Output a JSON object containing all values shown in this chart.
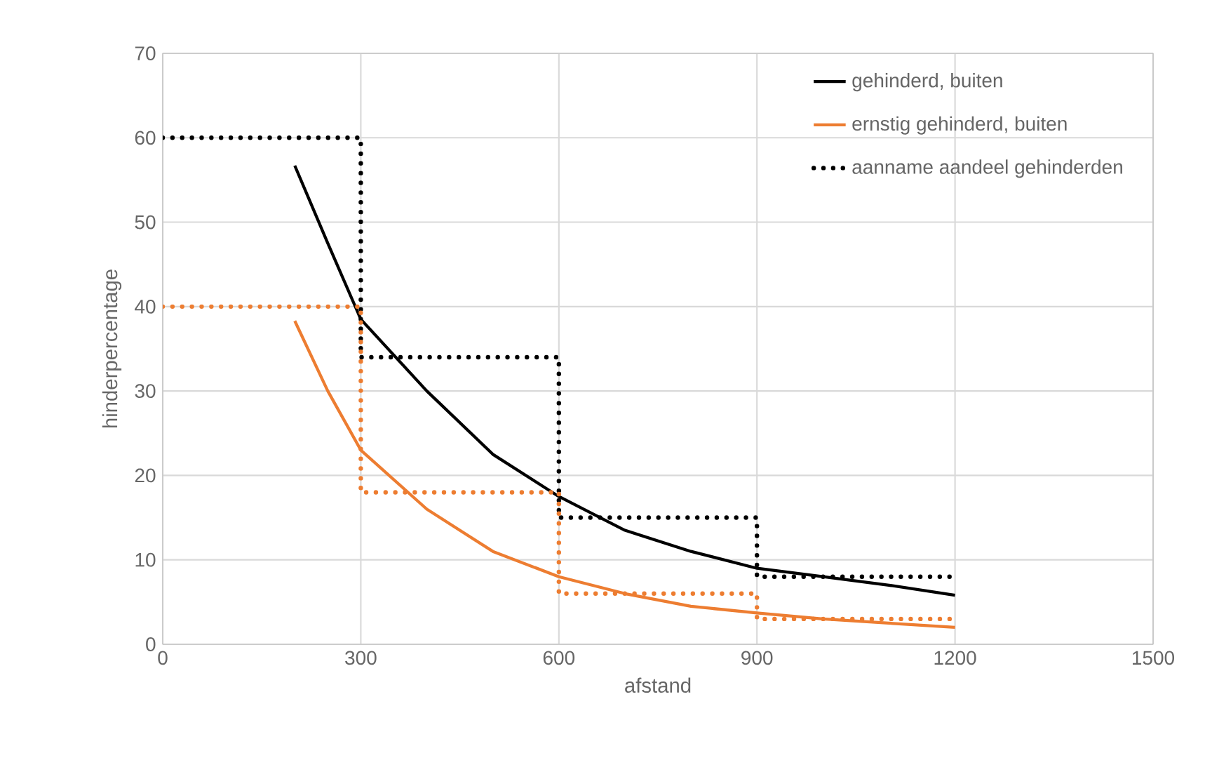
{
  "chart_data": {
    "type": "line",
    "xlabel": "afstand",
    "ylabel": "hinderpercentage",
    "xlim": [
      0,
      1500
    ],
    "xticks": [
      0,
      300,
      600,
      900,
      1200,
      1500
    ],
    "ylim": [
      0,
      70
    ],
    "yticks": [
      0,
      10,
      20,
      30,
      40,
      50,
      60,
      70
    ],
    "grid": true,
    "legend": "top right",
    "marker": "none",
    "series": [
      {
        "name": "gehinderd, buiten",
        "color": "#000000",
        "line_style": "solid",
        "x": [
          200,
          250,
          300,
          400,
          500,
          600,
          700,
          800,
          900,
          1000,
          1100,
          1200
        ],
        "values": [
          56.7,
          47.5,
          38.5,
          30,
          22.5,
          17.5,
          13.5,
          11,
          9,
          8,
          7,
          5.8
        ]
      },
      {
        "name": "ernstig gehinderd, buiten",
        "color": "#ed7d31",
        "line_style": "solid",
        "x": [
          200,
          250,
          300,
          400,
          500,
          600,
          700,
          800,
          900,
          1000,
          1100,
          1200
        ],
        "values": [
          38.3,
          30,
          23,
          16,
          11,
          8,
          6,
          4.5,
          3.7,
          3,
          2.5,
          2
        ]
      },
      {
        "name": "aanname aandeel gehinderden",
        "color": "#000000",
        "line_style": "dotted",
        "x": [
          0,
          300,
          300,
          600,
          600,
          900,
          900,
          1200
        ],
        "values": [
          60,
          60,
          34,
          34,
          15,
          15,
          8,
          8
        ]
      },
      {
        "color": "#ed7d31",
        "line_style": "dotted",
        "x": [
          0,
          300,
          300,
          600,
          600,
          900,
          900,
          1200
        ],
        "values": [
          40,
          40,
          18,
          18,
          6,
          6,
          3,
          3
        ]
      }
    ]
  }
}
